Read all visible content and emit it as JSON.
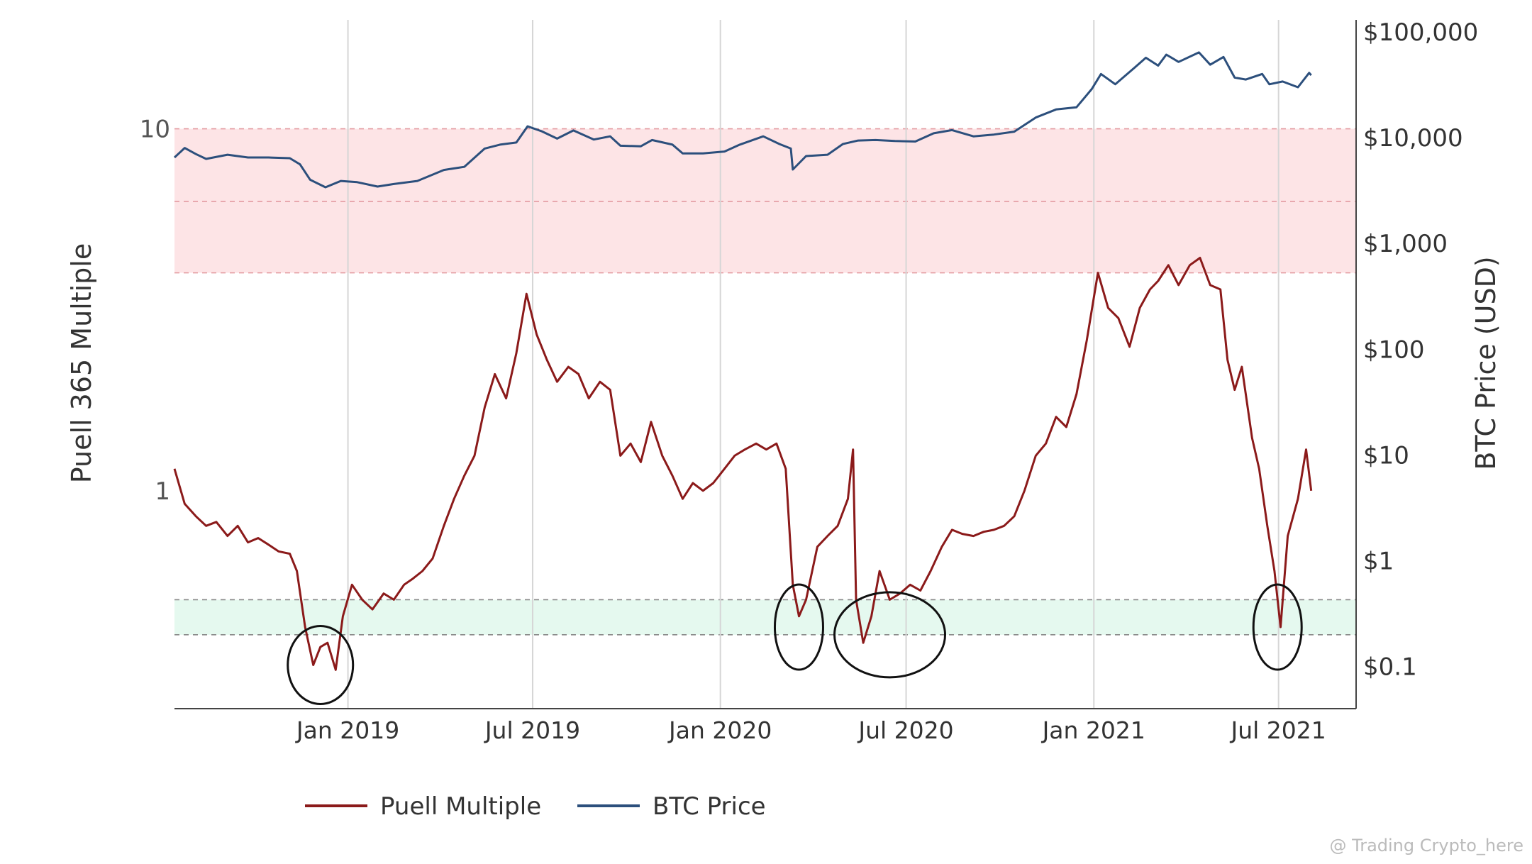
{
  "chart_data": {
    "type": "line",
    "y_left_label": "Puell 365 Multiple",
    "y_left_scale": "log",
    "y_left_ticks": [
      {
        "value": 10,
        "label": "10"
      },
      {
        "value": 1,
        "label": "1"
      }
    ],
    "y_right_label": "BTC Price (USD)",
    "y_right_scale": "log",
    "y_right_ticks": [
      {
        "value": 100000,
        "label": "$100,000"
      },
      {
        "value": 10000,
        "label": "$10,000"
      },
      {
        "value": 1000,
        "label": "$1,000"
      },
      {
        "value": 100,
        "label": "$100"
      },
      {
        "value": 10,
        "label": "$10"
      },
      {
        "value": 1,
        "label": "$1"
      },
      {
        "value": 0.1,
        "label": "$0.1"
      }
    ],
    "x_ticks": [
      {
        "date": "2019-01-01",
        "label": "Jan 2019"
      },
      {
        "date": "2019-07-01",
        "label": "Jul 2019"
      },
      {
        "date": "2020-01-01",
        "label": "Jan 2020"
      },
      {
        "date": "2020-07-01",
        "label": "Jul 2020"
      },
      {
        "date": "2021-01-01",
        "label": "Jan 2021"
      },
      {
        "date": "2021-07-01",
        "label": "Jul 2021"
      }
    ],
    "x_range": [
      "2018-07-15",
      "2021-09-15"
    ],
    "y_left_range": [
      0.25,
      20
    ],
    "y_right_range": [
      0.04,
      130000
    ],
    "bands": [
      {
        "name": "sell-zone",
        "from": 4,
        "to": 10,
        "color": "#fde4e6",
        "guides": [
          4,
          6.3,
          10
        ],
        "guide_color": "#e39aa0"
      },
      {
        "name": "buy-zone",
        "from": 0.5,
        "to": 0.4,
        "color": "#e5f9ef",
        "guides": [
          0.5,
          0.4
        ],
        "guide_color": "#888888"
      }
    ],
    "series": [
      {
        "name": "Puell Multiple",
        "axis": "left",
        "color": "#8b1a1a",
        "points": [
          [
            "2018-07-15",
            1.15
          ],
          [
            "2018-07-25",
            0.92
          ],
          [
            "2018-08-05",
            0.85
          ],
          [
            "2018-08-15",
            0.8
          ],
          [
            "2018-08-25",
            0.82
          ],
          [
            "2018-09-05",
            0.75
          ],
          [
            "2018-09-15",
            0.8
          ],
          [
            "2018-09-25",
            0.72
          ],
          [
            "2018-10-05",
            0.74
          ],
          [
            "2018-10-15",
            0.71
          ],
          [
            "2018-10-25",
            0.68
          ],
          [
            "2018-11-05",
            0.67
          ],
          [
            "2018-11-12",
            0.6
          ],
          [
            "2018-11-20",
            0.42
          ],
          [
            "2018-11-28",
            0.33
          ],
          [
            "2018-12-05",
            0.37
          ],
          [
            "2018-12-12",
            0.38
          ],
          [
            "2018-12-20",
            0.32
          ],
          [
            "2018-12-27",
            0.45
          ],
          [
            "2019-01-05",
            0.55
          ],
          [
            "2019-01-15",
            0.5
          ],
          [
            "2019-01-25",
            0.47
          ],
          [
            "2019-02-05",
            0.52
          ],
          [
            "2019-02-15",
            0.5
          ],
          [
            "2019-02-25",
            0.55
          ],
          [
            "2019-03-05",
            0.57
          ],
          [
            "2019-03-15",
            0.6
          ],
          [
            "2019-03-25",
            0.65
          ],
          [
            "2019-04-05",
            0.8
          ],
          [
            "2019-04-15",
            0.95
          ],
          [
            "2019-04-25",
            1.1
          ],
          [
            "2019-05-05",
            1.25
          ],
          [
            "2019-05-15",
            1.7
          ],
          [
            "2019-05-25",
            2.1
          ],
          [
            "2019-06-05",
            1.8
          ],
          [
            "2019-06-15",
            2.4
          ],
          [
            "2019-06-25",
            3.5
          ],
          [
            "2019-07-05",
            2.7
          ],
          [
            "2019-07-15",
            2.3
          ],
          [
            "2019-07-25",
            2.0
          ],
          [
            "2019-08-05",
            2.2
          ],
          [
            "2019-08-15",
            2.1
          ],
          [
            "2019-08-25",
            1.8
          ],
          [
            "2019-09-05",
            2.0
          ],
          [
            "2019-09-15",
            1.9
          ],
          [
            "2019-09-25",
            1.25
          ],
          [
            "2019-10-05",
            1.35
          ],
          [
            "2019-10-15",
            1.2
          ],
          [
            "2019-10-25",
            1.55
          ],
          [
            "2019-11-05",
            1.25
          ],
          [
            "2019-11-15",
            1.1
          ],
          [
            "2019-11-25",
            0.95
          ],
          [
            "2019-12-05",
            1.05
          ],
          [
            "2019-12-15",
            1.0
          ],
          [
            "2019-12-25",
            1.05
          ],
          [
            "2020-01-05",
            1.15
          ],
          [
            "2020-01-15",
            1.25
          ],
          [
            "2020-01-25",
            1.3
          ],
          [
            "2020-02-05",
            1.35
          ],
          [
            "2020-02-15",
            1.3
          ],
          [
            "2020-02-25",
            1.35
          ],
          [
            "2020-03-05",
            1.15
          ],
          [
            "2020-03-12",
            0.55
          ],
          [
            "2020-03-18",
            0.45
          ],
          [
            "2020-03-25",
            0.5
          ],
          [
            "2020-04-05",
            0.7
          ],
          [
            "2020-04-15",
            0.75
          ],
          [
            "2020-04-25",
            0.8
          ],
          [
            "2020-05-05",
            0.95
          ],
          [
            "2020-05-10",
            1.3
          ],
          [
            "2020-05-13",
            0.5
          ],
          [
            "2020-05-20",
            0.38
          ],
          [
            "2020-05-28",
            0.45
          ],
          [
            "2020-06-05",
            0.6
          ],
          [
            "2020-06-15",
            0.5
          ],
          [
            "2020-06-25",
            0.52
          ],
          [
            "2020-07-05",
            0.55
          ],
          [
            "2020-07-15",
            0.53
          ],
          [
            "2020-07-25",
            0.6
          ],
          [
            "2020-08-05",
            0.7
          ],
          [
            "2020-08-15",
            0.78
          ],
          [
            "2020-08-25",
            0.76
          ],
          [
            "2020-09-05",
            0.75
          ],
          [
            "2020-09-15",
            0.77
          ],
          [
            "2020-09-25",
            0.78
          ],
          [
            "2020-10-05",
            0.8
          ],
          [
            "2020-10-15",
            0.85
          ],
          [
            "2020-10-25",
            1.0
          ],
          [
            "2020-11-05",
            1.25
          ],
          [
            "2020-11-15",
            1.35
          ],
          [
            "2020-11-25",
            1.6
          ],
          [
            "2020-12-05",
            1.5
          ],
          [
            "2020-12-15",
            1.85
          ],
          [
            "2020-12-25",
            2.6
          ],
          [
            "2021-01-05",
            4.0
          ],
          [
            "2021-01-15",
            3.2
          ],
          [
            "2021-01-25",
            3.0
          ],
          [
            "2021-02-05",
            2.5
          ],
          [
            "2021-02-15",
            3.2
          ],
          [
            "2021-02-25",
            3.6
          ],
          [
            "2021-03-05",
            3.8
          ],
          [
            "2021-03-15",
            4.2
          ],
          [
            "2021-03-25",
            3.7
          ],
          [
            "2021-04-05",
            4.2
          ],
          [
            "2021-04-15",
            4.4
          ],
          [
            "2021-04-25",
            3.7
          ],
          [
            "2021-05-05",
            3.6
          ],
          [
            "2021-05-12",
            2.3
          ],
          [
            "2021-05-19",
            1.9
          ],
          [
            "2021-05-26",
            2.2
          ],
          [
            "2021-06-05",
            1.4
          ],
          [
            "2021-06-12",
            1.15
          ],
          [
            "2021-06-20",
            0.8
          ],
          [
            "2021-06-27",
            0.6
          ],
          [
            "2021-07-03",
            0.42
          ],
          [
            "2021-07-10",
            0.75
          ],
          [
            "2021-07-20",
            0.95
          ],
          [
            "2021-07-28",
            1.3
          ],
          [
            "2021-08-02",
            1.0
          ]
        ]
      },
      {
        "name": "BTC Price",
        "axis": "right",
        "color": "#2c4f7c",
        "points": [
          [
            "2018-07-15",
            6500
          ],
          [
            "2018-07-25",
            8000
          ],
          [
            "2018-08-05",
            7000
          ],
          [
            "2018-08-15",
            6300
          ],
          [
            "2018-09-05",
            6900
          ],
          [
            "2018-09-25",
            6500
          ],
          [
            "2018-10-15",
            6500
          ],
          [
            "2018-11-05",
            6400
          ],
          [
            "2018-11-15",
            5600
          ],
          [
            "2018-11-25",
            4000
          ],
          [
            "2018-12-10",
            3400
          ],
          [
            "2018-12-25",
            3900
          ],
          [
            "2019-01-10",
            3800
          ],
          [
            "2019-01-30",
            3450
          ],
          [
            "2019-02-15",
            3650
          ],
          [
            "2019-03-10",
            3900
          ],
          [
            "2019-04-05",
            4950
          ],
          [
            "2019-04-25",
            5300
          ],
          [
            "2019-05-15",
            7900
          ],
          [
            "2019-05-30",
            8600
          ],
          [
            "2019-06-15",
            9000
          ],
          [
            "2019-06-26",
            12800
          ],
          [
            "2019-07-10",
            11500
          ],
          [
            "2019-07-25",
            9800
          ],
          [
            "2019-08-10",
            11700
          ],
          [
            "2019-08-30",
            9600
          ],
          [
            "2019-09-15",
            10300
          ],
          [
            "2019-09-25",
            8400
          ],
          [
            "2019-10-15",
            8300
          ],
          [
            "2019-10-26",
            9500
          ],
          [
            "2019-11-15",
            8600
          ],
          [
            "2019-11-25",
            7100
          ],
          [
            "2019-12-15",
            7100
          ],
          [
            "2020-01-05",
            7400
          ],
          [
            "2020-01-20",
            8600
          ],
          [
            "2020-02-12",
            10300
          ],
          [
            "2020-02-28",
            8700
          ],
          [
            "2020-03-10",
            7900
          ],
          [
            "2020-03-12",
            5000
          ],
          [
            "2020-03-25",
            6700
          ],
          [
            "2020-04-15",
            6900
          ],
          [
            "2020-04-30",
            8700
          ],
          [
            "2020-05-15",
            9400
          ],
          [
            "2020-06-01",
            9500
          ],
          [
            "2020-06-20",
            9300
          ],
          [
            "2020-07-10",
            9200
          ],
          [
            "2020-07-28",
            11000
          ],
          [
            "2020-08-15",
            11800
          ],
          [
            "2020-09-05",
            10300
          ],
          [
            "2020-09-25",
            10700
          ],
          [
            "2020-10-15",
            11400
          ],
          [
            "2020-11-05",
            15500
          ],
          [
            "2020-11-25",
            18500
          ],
          [
            "2020-12-15",
            19400
          ],
          [
            "2020-12-30",
            28900
          ],
          [
            "2021-01-08",
            40000
          ],
          [
            "2021-01-22",
            32000
          ],
          [
            "2021-02-10",
            46000
          ],
          [
            "2021-02-21",
            57000
          ],
          [
            "2021-03-05",
            48000
          ],
          [
            "2021-03-13",
            61000
          ],
          [
            "2021-03-25",
            52000
          ],
          [
            "2021-04-14",
            64000
          ],
          [
            "2021-04-25",
            49000
          ],
          [
            "2021-05-08",
            58000
          ],
          [
            "2021-05-19",
            37000
          ],
          [
            "2021-05-30",
            35500
          ],
          [
            "2021-06-15",
            40000
          ],
          [
            "2021-06-22",
            32000
          ],
          [
            "2021-07-05",
            34000
          ],
          [
            "2021-07-20",
            30000
          ],
          [
            "2021-07-31",
            41000
          ],
          [
            "2021-08-02",
            39000
          ]
        ]
      }
    ],
    "annotations": [
      {
        "type": "ellipse",
        "center": "2018-12-05",
        "value": 0.33
      },
      {
        "type": "ellipse",
        "center": "2020-03-18",
        "value": 0.42
      },
      {
        "type": "ellipse",
        "center": "2020-06-15",
        "value": 0.4
      },
      {
        "type": "ellipse",
        "center": "2021-06-30",
        "value": 0.42
      }
    ],
    "legend": {
      "position": "bottom-center",
      "items": [
        "Puell Multiple",
        "BTC Price"
      ]
    },
    "grid": {
      "vertical": true,
      "horizontal": false
    }
  },
  "watermark": "@ Trading Crypto_here"
}
